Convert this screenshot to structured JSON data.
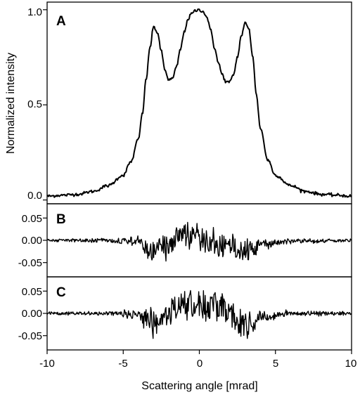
{
  "chart_data": [
    {
      "panel": "A",
      "type": "line",
      "xlabel": "",
      "ylabel": "Normalized intensity",
      "xlim": [
        -10,
        10
      ],
      "ylim": [
        -0.02,
        1.04
      ],
      "yticks": [
        "0.0",
        "0.5",
        "1.0"
      ],
      "x": [
        -10,
        -9,
        -8,
        -7,
        -6,
        -5,
        -4.5,
        -4,
        -3.75,
        -3.5,
        -3.25,
        -3,
        -2.75,
        -2.5,
        -2.25,
        -2,
        -1.75,
        -1.5,
        -1.25,
        -1,
        -0.75,
        -0.5,
        -0.25,
        0,
        0.25,
        0.5,
        0.75,
        1,
        1.25,
        1.5,
        1.75,
        2,
        2.25,
        2.5,
        2.75,
        3,
        3.25,
        3.5,
        3.75,
        4,
        4.5,
        5,
        6,
        7,
        8,
        9,
        10
      ],
      "y": [
        0.02,
        0.025,
        0.03,
        0.045,
        0.075,
        0.13,
        0.2,
        0.32,
        0.45,
        0.63,
        0.8,
        0.91,
        0.88,
        0.78,
        0.68,
        0.63,
        0.64,
        0.7,
        0.79,
        0.88,
        0.95,
        0.98,
        0.995,
        1.0,
        0.99,
        0.96,
        0.89,
        0.8,
        0.72,
        0.66,
        0.62,
        0.62,
        0.66,
        0.75,
        0.86,
        0.93,
        0.9,
        0.76,
        0.55,
        0.38,
        0.21,
        0.13,
        0.075,
        0.045,
        0.03,
        0.025,
        0.02
      ]
    },
    {
      "panel": "B",
      "type": "line",
      "xlabel": "",
      "ylabel": "",
      "xlim": [
        -10,
        10
      ],
      "ylim": [
        -0.082,
        0.082
      ],
      "yticks": [
        "-0.05",
        "0.00",
        "0.05"
      ],
      "envelope_x": [
        -10,
        -6,
        -4,
        -3.5,
        -3,
        -2.5,
        -2,
        -1.5,
        -1,
        -0.5,
        0,
        0.5,
        1,
        1.5,
        2,
        2.5,
        3,
        3.5,
        4,
        6,
        10
      ],
      "envelope_mean": [
        0,
        0,
        -0.003,
        -0.015,
        -0.022,
        -0.02,
        -0.01,
        0.006,
        0.012,
        0.01,
        0.005,
        -0.002,
        -0.008,
        -0.012,
        -0.018,
        -0.025,
        -0.028,
        -0.022,
        -0.008,
        -0.002,
        0
      ],
      "envelope_amp": [
        0.003,
        0.004,
        0.01,
        0.02,
        0.025,
        0.028,
        0.028,
        0.026,
        0.028,
        0.028,
        0.026,
        0.026,
        0.026,
        0.026,
        0.026,
        0.024,
        0.022,
        0.018,
        0.01,
        0.005,
        0.003
      ]
    },
    {
      "panel": "C",
      "type": "line",
      "xlabel": "Scattering angle [mrad]",
      "ylabel": "",
      "xlim": [
        -10,
        10
      ],
      "ylim": [
        -0.082,
        0.082
      ],
      "yticks": [
        "-0.05",
        "0.00",
        "0.05"
      ],
      "xticks": [
        "-10",
        "-5",
        "0",
        "5",
        "10"
      ],
      "envelope_x": [
        -10,
        -6,
        -4,
        -3.5,
        -3,
        -2.5,
        -2,
        -1.5,
        -1,
        -0.5,
        0,
        0.5,
        1,
        1.5,
        2,
        2.5,
        3,
        3.5,
        4,
        6,
        10
      ],
      "envelope_mean": [
        0,
        0,
        -0.002,
        -0.012,
        -0.025,
        -0.018,
        -0.004,
        0.012,
        0.02,
        0.024,
        0.02,
        0.018,
        0.02,
        0.016,
        0.006,
        -0.015,
        -0.03,
        -0.022,
        -0.006,
        0,
        0
      ],
      "envelope_amp": [
        0.003,
        0.004,
        0.01,
        0.018,
        0.025,
        0.022,
        0.025,
        0.028,
        0.03,
        0.032,
        0.03,
        0.03,
        0.03,
        0.03,
        0.028,
        0.026,
        0.03,
        0.022,
        0.01,
        0.005,
        0.003
      ]
    }
  ],
  "panel_labels": [
    "A",
    "B",
    "C"
  ],
  "xlabel": "Scattering angle [mrad]",
  "ylabel": "Normalized intensity",
  "xticks": [
    "-10",
    "-5",
    "0",
    "5",
    "10"
  ],
  "ticks_A": [
    "0.0",
    "0.5",
    "1.0"
  ],
  "ticks_BC": [
    "-0.05",
    "0.00",
    "0.05"
  ]
}
